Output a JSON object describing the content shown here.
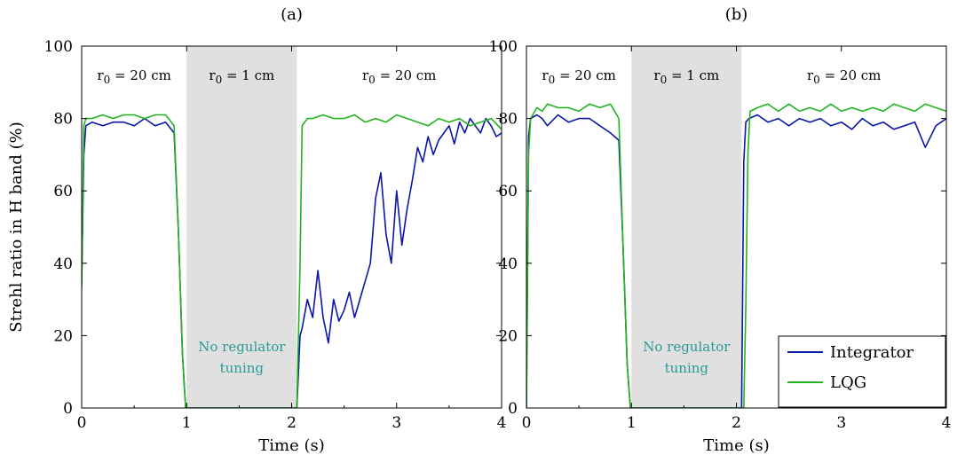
{
  "chart_data": [
    {
      "type": "line",
      "title": "(a)",
      "xlabel": "Time (s)",
      "ylabel": "Strehl ratio in H band (%)",
      "xlim": [
        0,
        4
      ],
      "ylim": [
        0,
        100
      ],
      "xticks": [
        0,
        1,
        2,
        3,
        4
      ],
      "yticks": [
        0,
        20,
        40,
        60,
        80,
        100
      ],
      "shaded_region": {
        "x": [
          1,
          2.05
        ],
        "color": "#e0e0e0"
      },
      "annotations": {
        "regions": [
          "r0 = 20 cm",
          "r0 = 1 cm",
          "r0 = 20 cm"
        ],
        "note_line1": "No regulator",
        "note_line2": "tuning"
      },
      "series": [
        {
          "name": "Integrator",
          "color": "#0a17a8",
          "x": [
            0,
            0.02,
            0.04,
            0.1,
            0.2,
            0.3,
            0.4,
            0.5,
            0.6,
            0.7,
            0.8,
            0.88,
            0.92,
            0.96,
            0.99,
            2.05,
            2.08,
            2.1,
            2.15,
            2.2,
            2.25,
            2.3,
            2.35,
            2.4,
            2.45,
            2.5,
            2.55,
            2.6,
            2.65,
            2.7,
            2.75,
            2.8,
            2.85,
            2.9,
            2.95,
            3.0,
            3.05,
            3.1,
            3.15,
            3.2,
            3.25,
            3.3,
            3.35,
            3.4,
            3.45,
            3.5,
            3.55,
            3.6,
            3.65,
            3.7,
            3.75,
            3.8,
            3.85,
            3.9,
            3.95,
            4.0
          ],
          "y": [
            35,
            70,
            78,
            79,
            78,
            79,
            79,
            78,
            80,
            78,
            79,
            76,
            50,
            15,
            0,
            0,
            20,
            22,
            30,
            25,
            38,
            25,
            18,
            30,
            24,
            27,
            32,
            25,
            30,
            35,
            40,
            58,
            65,
            48,
            40,
            60,
            45,
            55,
            63,
            72,
            68,
            75,
            70,
            74,
            76,
            78,
            73,
            79,
            76,
            80,
            78,
            76,
            80,
            78,
            75,
            76
          ]
        },
        {
          "name": "LQG",
          "color": "#22b41e",
          "x": [
            0,
            0.02,
            0.04,
            0.1,
            0.2,
            0.3,
            0.4,
            0.5,
            0.6,
            0.7,
            0.8,
            0.88,
            0.92,
            0.96,
            0.99,
            2.05,
            2.08,
            2.1,
            2.15,
            2.2,
            2.3,
            2.4,
            2.5,
            2.6,
            2.7,
            2.8,
            2.9,
            3.0,
            3.1,
            3.2,
            3.3,
            3.4,
            3.5,
            3.6,
            3.7,
            3.8,
            3.9,
            4.0
          ],
          "y": [
            33,
            78,
            80,
            80,
            81,
            80,
            81,
            81,
            80,
            81,
            81,
            78,
            50,
            15,
            0,
            0,
            40,
            78,
            80,
            80,
            81,
            80,
            80,
            81,
            79,
            80,
            79,
            81,
            80,
            79,
            78,
            80,
            79,
            80,
            78,
            79,
            80,
            77
          ]
        }
      ]
    },
    {
      "type": "line",
      "title": "(b)",
      "xlabel": "Time (s)",
      "ylabel": "",
      "xlim": [
        0,
        4
      ],
      "ylim": [
        0,
        100
      ],
      "xticks": [
        0,
        1,
        2,
        3,
        4
      ],
      "yticks": [
        0,
        20,
        40,
        60,
        80,
        100
      ],
      "shaded_region": {
        "x": [
          1,
          2.05
        ],
        "color": "#e0e0e0"
      },
      "annotations": {
        "regions": [
          "r0 = 20 cm",
          "r0 = 1 cm",
          "r0 = 20 cm"
        ],
        "note_line1": "No regulator",
        "note_line2": "tuning"
      },
      "legend": {
        "position": "bottom-right",
        "entries": [
          "Integrator",
          "LQG"
        ]
      },
      "series": [
        {
          "name": "Integrator",
          "color": "#0a17a8",
          "x": [
            0,
            0.02,
            0.04,
            0.1,
            0.15,
            0.2,
            0.3,
            0.4,
            0.5,
            0.6,
            0.7,
            0.8,
            0.88,
            0.92,
            0.96,
            0.99,
            2.05,
            2.07,
            2.09,
            2.12,
            2.2,
            2.3,
            2.4,
            2.5,
            2.6,
            2.7,
            2.8,
            2.9,
            3.0,
            3.1,
            3.2,
            3.3,
            3.4,
            3.5,
            3.6,
            3.7,
            3.8,
            3.9,
            4.0
          ],
          "y": [
            0,
            75,
            80,
            81,
            80,
            78,
            81,
            79,
            80,
            80,
            78,
            76,
            74,
            45,
            12,
            0,
            0,
            68,
            79,
            80,
            81,
            79,
            80,
            78,
            80,
            79,
            80,
            78,
            79,
            77,
            80,
            78,
            79,
            77,
            78,
            79,
            72,
            78,
            80
          ]
        },
        {
          "name": "LQG",
          "color": "#22b41e",
          "x": [
            0,
            0.02,
            0.04,
            0.1,
            0.15,
            0.2,
            0.3,
            0.4,
            0.5,
            0.6,
            0.7,
            0.8,
            0.88,
            0.92,
            0.96,
            0.99,
            2.07,
            2.09,
            2.11,
            2.13,
            2.2,
            2.3,
            2.4,
            2.5,
            2.6,
            2.7,
            2.8,
            2.9,
            3.0,
            3.1,
            3.2,
            3.3,
            3.4,
            3.5,
            3.6,
            3.7,
            3.8,
            3.9,
            4.0
          ],
          "y": [
            0,
            70,
            80,
            83,
            82,
            84,
            83,
            83,
            82,
            84,
            83,
            84,
            80,
            45,
            12,
            0,
            0,
            28,
            70,
            82,
            83,
            84,
            82,
            84,
            82,
            83,
            82,
            84,
            82,
            83,
            82,
            83,
            82,
            84,
            83,
            82,
            84,
            83,
            82
          ]
        }
      ]
    }
  ]
}
